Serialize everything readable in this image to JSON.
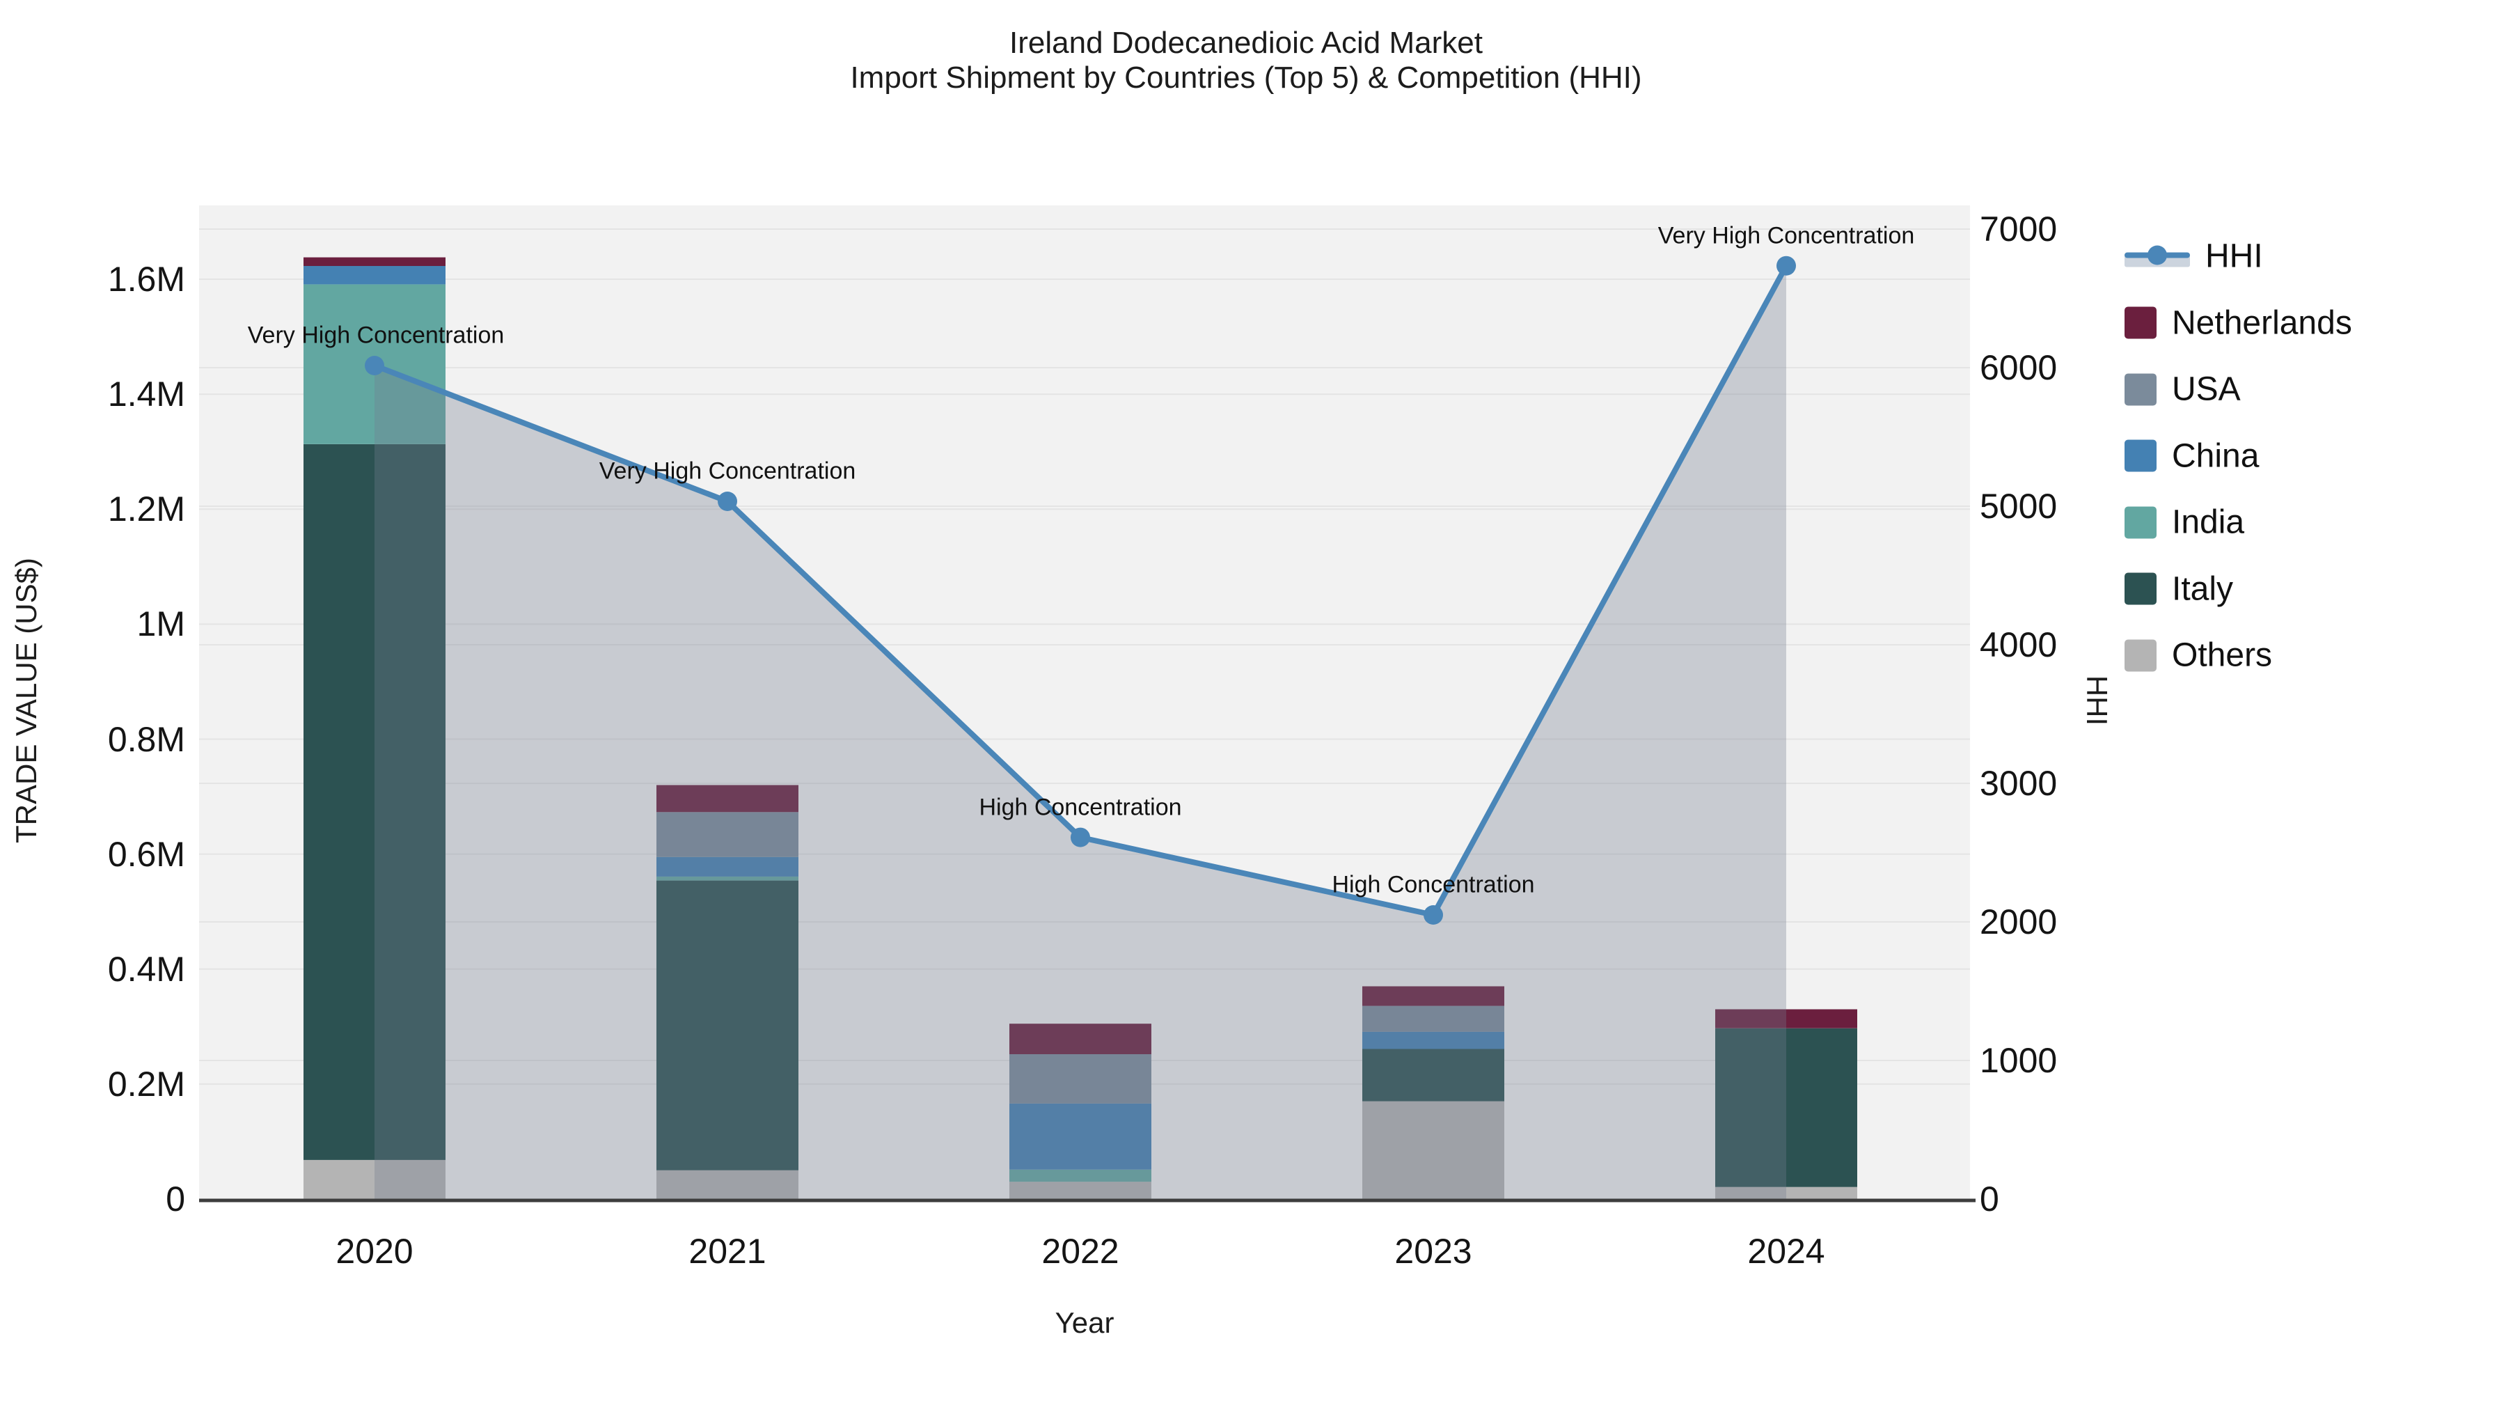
{
  "title": {
    "line1": "Ireland Dodecanedioic Acid Market",
    "line2": "Import Shipment by Countries (Top 5) & Competition (HHI)"
  },
  "legend": [
    {
      "label": "HHI",
      "type": "line",
      "color": "#4a86b8"
    },
    {
      "label": "Netherlands",
      "type": "swatch",
      "color": "#6b1f3e"
    },
    {
      "label": "USA",
      "type": "swatch",
      "color": "#7b8b9b"
    },
    {
      "label": "China",
      "type": "swatch",
      "color": "#4481b3"
    },
    {
      "label": "India",
      "type": "swatch",
      "color": "#62a7a1"
    },
    {
      "label": "Italy",
      "type": "swatch",
      "color": "#2c5252"
    },
    {
      "label": "Others",
      "type": "swatch",
      "color": "#b4b4b4"
    }
  ],
  "chart_data": {
    "type": "combo-stacked-bar-line",
    "categories": [
      "2020",
      "2021",
      "2022",
      "2023",
      "2024"
    ],
    "bar_unit": "US$",
    "series": [
      {
        "name": "Others",
        "color": "#b4b4b4",
        "values": [
          68000,
          50000,
          30000,
          170000,
          21000
        ]
      },
      {
        "name": "Italy",
        "color": "#2c5252",
        "values": [
          1245000,
          504000,
          0,
          91000,
          276000
        ]
      },
      {
        "name": "India",
        "color": "#62a7a1",
        "values": [
          278000,
          7000,
          21000,
          0,
          0
        ]
      },
      {
        "name": "China",
        "color": "#4481b3",
        "values": [
          32000,
          34000,
          115000,
          30000,
          0
        ]
      },
      {
        "name": "USA",
        "color": "#7b8b9b",
        "values": [
          0,
          78000,
          86000,
          45000,
          0
        ]
      },
      {
        "name": "Netherlands",
        "color": "#6b1f3e",
        "values": [
          15000,
          47000,
          53000,
          34000,
          33000
        ]
      }
    ],
    "line_series": {
      "name": "HHI",
      "color": "#4a86b8",
      "area_fill": "rgba(115,125,142,0.33)",
      "values": [
        6015,
        5035,
        2610,
        2050,
        6735
      ]
    },
    "annotations": [
      "Very High Concentration",
      "Very High Concentration",
      "High Concentration",
      "High Concentration",
      "Very High Concentration"
    ],
    "left_axis": {
      "title": "TRADE VALUE (US$)",
      "max": 1600000,
      "ticks": [
        {
          "label": "0",
          "value": 0
        },
        {
          "label": "0.2M",
          "value": 200000
        },
        {
          "label": "0.4M",
          "value": 400000
        },
        {
          "label": "0.6M",
          "value": 600000
        },
        {
          "label": "0.8M",
          "value": 800000
        },
        {
          "label": "1M",
          "value": 1000000
        },
        {
          "label": "1.2M",
          "value": 1200000
        },
        {
          "label": "1.4M",
          "value": 1400000
        },
        {
          "label": "1.6M",
          "value": 1600000
        }
      ]
    },
    "right_axis": {
      "title": "HHI",
      "max": 7000,
      "ticks": [
        {
          "label": "0",
          "value": 0
        },
        {
          "label": "1000",
          "value": 1000
        },
        {
          "label": "2000",
          "value": 2000
        },
        {
          "label": "3000",
          "value": 3000
        },
        {
          "label": "4000",
          "value": 4000
        },
        {
          "label": "5000",
          "value": 5000
        },
        {
          "label": "6000",
          "value": 6000
        },
        {
          "label": "7000",
          "value": 7000
        }
      ]
    },
    "x_axis": {
      "title": "Year"
    },
    "style": {
      "plot_bg": "#f2f2f2",
      "grid_color": "#e4e4e4",
      "axis_line_color": "#3d3d3d"
    }
  }
}
